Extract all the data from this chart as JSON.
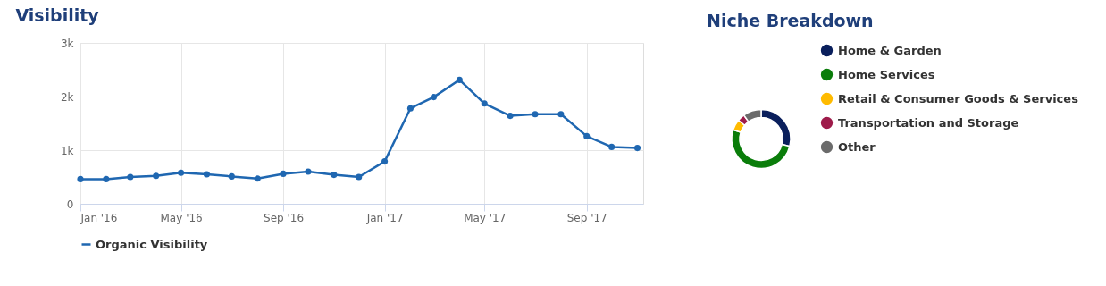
{
  "chart_data": [
    {
      "type": "line",
      "title": "Visibility",
      "x": [
        "2016-01",
        "2016-02",
        "2016-03",
        "2016-04",
        "2016-05",
        "2016-06",
        "2016-07",
        "2016-08",
        "2016-09",
        "2016-10",
        "2016-11",
        "2016-12",
        "2017-01",
        "2017-02",
        "2017-03",
        "2017-04",
        "2017-05",
        "2017-06",
        "2017-07",
        "2017-08",
        "2017-09",
        "2017-10",
        "2017-11"
      ],
      "series": [
        {
          "name": "Organic Visibility",
          "color": "#1f67b1",
          "values": [
            460,
            460,
            500,
            520,
            580,
            550,
            510,
            470,
            560,
            600,
            540,
            500,
            790,
            1780,
            1990,
            2310,
            1870,
            1640,
            1670,
            1670,
            1260,
            1060,
            1040
          ]
        }
      ],
      "xlim": [
        "2016-01-01",
        "2017-11-08"
      ],
      "xticks": [
        {
          "value": "2016-01",
          "label": "Jan '16"
        },
        {
          "value": "2016-05",
          "label": "May '16"
        },
        {
          "value": "2016-09",
          "label": "Sep '16"
        },
        {
          "value": "2017-01",
          "label": "Jan '17"
        },
        {
          "value": "2017-05",
          "label": "May '17"
        },
        {
          "value": "2017-09",
          "label": "Sep '17"
        }
      ],
      "ylim": [
        0,
        3000
      ],
      "yticks": [
        0,
        {
          "value": 1000,
          "label": "1k"
        },
        {
          "value": 2000,
          "label": "2k"
        },
        {
          "value": 3000,
          "label": "3k"
        }
      ],
      "grid": true,
      "marker": "circle",
      "line_style": "solid",
      "legend": "bottom"
    },
    {
      "type": "donut",
      "title": "Niche Breakdown",
      "categories": [
        "Home & Garden",
        "Home Services",
        "Retail & Consumer Goods & Services",
        "Transportation and Storage",
        "Other"
      ],
      "values": [
        29,
        51,
        6,
        4,
        10
      ],
      "colors": [
        "#0a1f5c",
        "#0a7d0a",
        "#ffbb00",
        "#9e1b4a",
        "#6b6b6b"
      ],
      "legend": "right"
    }
  ]
}
